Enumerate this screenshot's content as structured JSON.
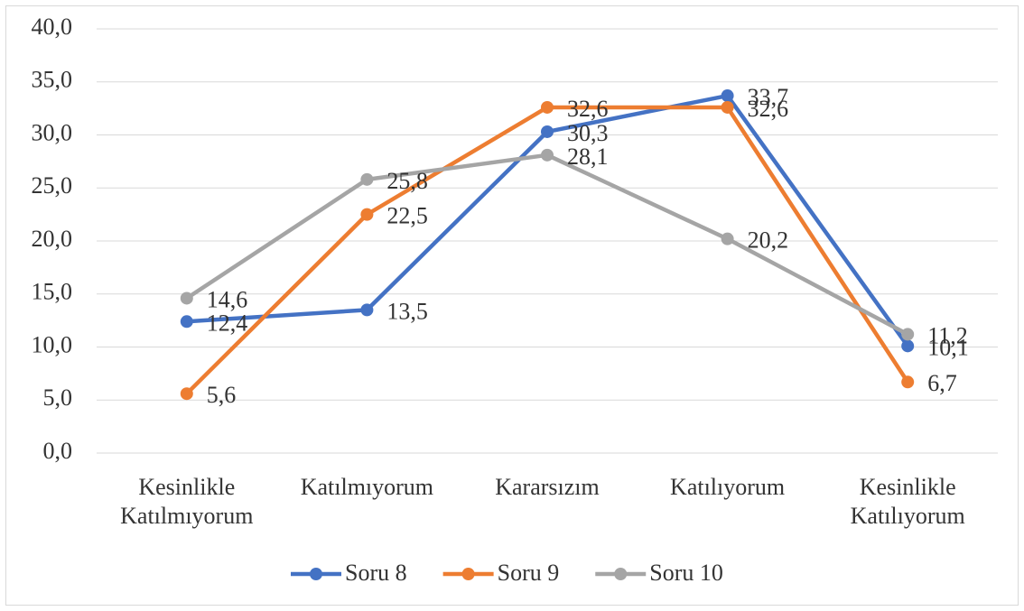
{
  "chart_data": {
    "type": "line",
    "categories": [
      "Kesinlikle Katılmıyorum",
      "Katılmıyorum",
      "Kararsızım",
      "Katılıyorum",
      "Kesinlikle Katılıyorum"
    ],
    "series": [
      {
        "name": "Soru 8",
        "color": "#4472c4",
        "values": [
          12.4,
          13.5,
          30.3,
          33.7,
          10.1
        ],
        "value_labels": [
          "12,4",
          "13,5",
          "30,3",
          "33,7",
          "10,1"
        ]
      },
      {
        "name": "Soru 9",
        "color": "#ed7d31",
        "values": [
          5.6,
          22.5,
          32.6,
          32.6,
          6.7
        ],
        "value_labels": [
          "5,6",
          "22,5",
          "32,6",
          "32,6",
          "6,7"
        ]
      },
      {
        "name": "Soru 10",
        "color": "#a5a5a5",
        "values": [
          14.6,
          25.8,
          28.1,
          20.2,
          11.2
        ],
        "value_labels": [
          "14,6",
          "25,8",
          "28,1",
          "20,2",
          "11,2"
        ]
      }
    ],
    "ylim": [
      0,
      40
    ],
    "yticks": [
      {
        "value": 0,
        "label": "0,0"
      },
      {
        "value": 5,
        "label": "5,0"
      },
      {
        "value": 10,
        "label": "10,0"
      },
      {
        "value": 15,
        "label": "15,0"
      },
      {
        "value": 20,
        "label": "20,0"
      },
      {
        "value": 25,
        "label": "25,0"
      },
      {
        "value": 30,
        "label": "30,0"
      },
      {
        "value": 35,
        "label": "35,0"
      },
      {
        "value": 40,
        "label": "40,0"
      }
    ],
    "grid": true,
    "legend": "bottom"
  }
}
